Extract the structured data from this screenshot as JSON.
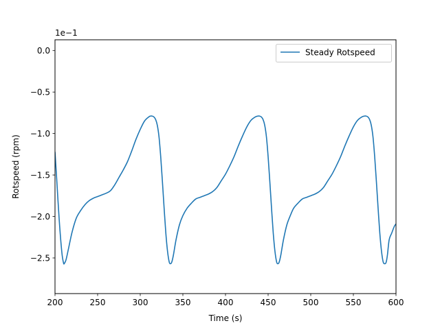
{
  "chart_data": {
    "type": "line",
    "title": "",
    "xlabel": "Time (s)",
    "ylabel": "Rotspeed (rpm)",
    "offset_text": "1e−1",
    "xlim": [
      200,
      600
    ],
    "ylim": [
      -2.93,
      0.13
    ],
    "xticks": [
      200,
      250,
      300,
      350,
      400,
      450,
      500,
      550,
      600
    ],
    "xtick_labels": [
      "200",
      "250",
      "300",
      "350",
      "400",
      "450",
      "500",
      "550",
      "600"
    ],
    "yticks": [
      0.0,
      -0.5,
      -1.0,
      -1.5,
      -2.0,
      -2.5
    ],
    "ytick_labels": [
      "0.0",
      "−0.5",
      "−1.0",
      "−1.5",
      "−2.0",
      "−2.5"
    ],
    "grid": false,
    "legend": {
      "position": "upper-right",
      "entries": [
        "Steady Rotspeed"
      ]
    },
    "series": [
      {
        "name": "Steady Rotspeed",
        "color": "#1f77b4",
        "x": [
          200,
          202,
          205,
          208,
          210,
          211,
          213,
          216,
          220,
          225,
          230,
          235,
          240,
          245,
          250,
          255,
          260,
          265,
          270,
          275,
          280,
          285,
          290,
          295,
          300,
          305,
          310,
          312,
          314,
          316,
          318,
          320,
          322,
          324,
          326,
          328,
          330,
          332,
          334,
          335.5,
          337,
          339,
          342,
          346,
          350,
          355,
          360,
          365,
          370,
          375,
          380,
          385,
          390,
          395,
          400,
          405,
          410,
          415,
          420,
          425,
          430,
          435,
          438,
          440,
          442,
          444,
          446,
          448,
          450,
          452,
          454,
          456,
          458,
          460,
          461.5,
          463,
          465,
          468,
          472,
          476,
          480,
          485,
          490,
          495,
          500,
          505,
          510,
          515,
          520,
          525,
          530,
          535,
          540,
          545,
          550,
          555,
          560,
          563,
          565,
          567,
          569,
          571,
          573,
          575,
          577,
          579,
          581,
          583,
          585,
          587,
          588.5,
          590,
          592,
          595,
          598,
          600
        ],
        "y": [
          -1.22,
          -1.55,
          -2.05,
          -2.43,
          -2.56,
          -2.565,
          -2.52,
          -2.38,
          -2.19,
          -2.02,
          -1.93,
          -1.86,
          -1.81,
          -1.78,
          -1.76,
          -1.74,
          -1.72,
          -1.69,
          -1.62,
          -1.53,
          -1.44,
          -1.34,
          -1.21,
          -1.07,
          -0.95,
          -0.85,
          -0.8,
          -0.79,
          -0.79,
          -0.8,
          -0.83,
          -0.9,
          -1.04,
          -1.28,
          -1.58,
          -1.9,
          -2.2,
          -2.42,
          -2.55,
          -2.57,
          -2.55,
          -2.46,
          -2.28,
          -2.1,
          -1.99,
          -1.9,
          -1.84,
          -1.79,
          -1.77,
          -1.75,
          -1.73,
          -1.7,
          -1.65,
          -1.57,
          -1.49,
          -1.39,
          -1.28,
          -1.15,
          -1.03,
          -0.92,
          -0.84,
          -0.8,
          -0.79,
          -0.79,
          -0.8,
          -0.83,
          -0.9,
          -1.04,
          -1.28,
          -1.58,
          -1.9,
          -2.2,
          -2.42,
          -2.55,
          -2.57,
          -2.55,
          -2.46,
          -2.28,
          -2.1,
          -1.99,
          -1.9,
          -1.84,
          -1.79,
          -1.77,
          -1.75,
          -1.73,
          -1.7,
          -1.65,
          -1.57,
          -1.49,
          -1.39,
          -1.28,
          -1.15,
          -1.03,
          -0.92,
          -0.84,
          -0.8,
          -0.79,
          -0.79,
          -0.8,
          -0.83,
          -0.9,
          -1.04,
          -1.28,
          -1.58,
          -1.9,
          -2.2,
          -2.42,
          -2.55,
          -2.57,
          -2.55,
          -2.46,
          -2.28,
          -2.2,
          -2.12,
          -2.09
        ]
      }
    ]
  }
}
